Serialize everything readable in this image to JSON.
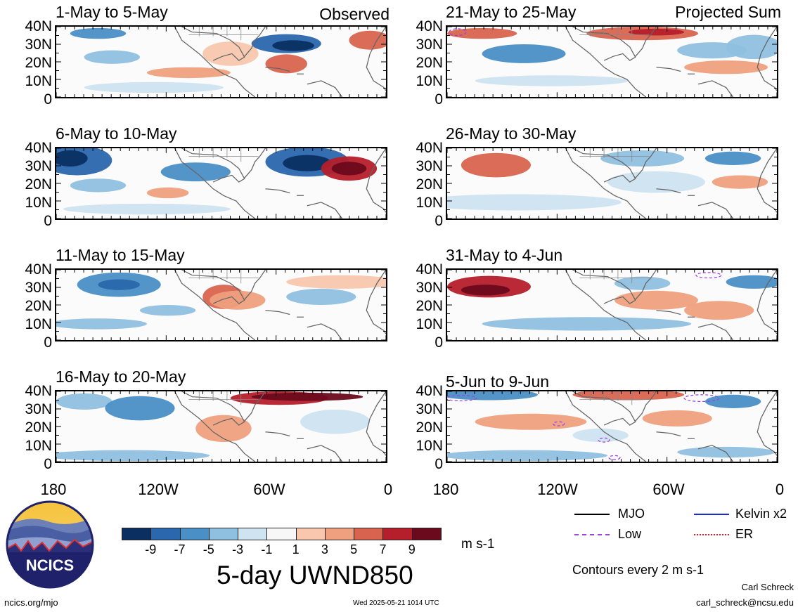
{
  "labels": {
    "observed": "Observed",
    "projected": "Projected Sum"
  },
  "left_panels": [
    "1-May to 5-May",
    "6-May to 10-May",
    "11-May to 15-May",
    "16-May to 20-May"
  ],
  "right_panels": [
    "21-May to 25-May",
    "26-May to 30-May",
    "31-May to 4-Jun",
    "5-Jun to 9-Jun"
  ],
  "lat_ticks": [
    "40N",
    "30N",
    "20N",
    "10N",
    "0"
  ],
  "lon_ticks": [
    "180",
    "120W",
    "60W",
    "0"
  ],
  "colorbar": {
    "ticks": [
      "-9",
      "-7",
      "-5",
      "-3",
      "-1",
      "1",
      "3",
      "5",
      "7",
      "9"
    ],
    "colors": [
      "#0b2f61",
      "#2a67ad",
      "#4a8fc5",
      "#8fc0df",
      "#cfe3f0",
      "#f7f7f7",
      "#f8c7ad",
      "#efa07e",
      "#d8644f",
      "#b51f2b",
      "#6b0a1c"
    ],
    "units": "m s-1"
  },
  "title": "5-day UWND850",
  "legend": {
    "items": [
      {
        "label": "MJO",
        "color": "#000000"
      },
      {
        "label": "Kelvin x2",
        "color": "#1a2bd6"
      },
      {
        "label": "Low",
        "color": "#a040e0"
      },
      {
        "label": "ER",
        "color": "#e02020"
      }
    ],
    "contours": "Contours every 2 m s-1"
  },
  "footer": {
    "site": "ncics.org/mjo",
    "timestamp": "Wed 2025-05-21 1014 UTC",
    "author": "Carl Schreck",
    "email": "carl_schreck@ncsu.edu"
  },
  "logo": {
    "text": "NCICS"
  }
}
